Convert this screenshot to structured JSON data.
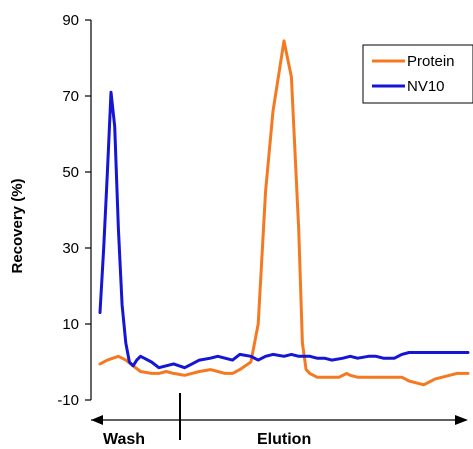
{
  "chart_data": {
    "type": "line",
    "ylabel": "Recovery (%)",
    "xlabel": "",
    "title": "",
    "ylim": [
      -10,
      90
    ],
    "yticks": [
      -10,
      10,
      30,
      50,
      70,
      90
    ],
    "xlim": [
      0,
      100
    ],
    "grid": false,
    "legend_position": "top-right",
    "regions": [
      "Wash",
      "Elution"
    ],
    "series": [
      {
        "name": "Protein",
        "color": "#f47920",
        "x": [
          0,
          2,
          5,
          7,
          9,
          11,
          14,
          16,
          18,
          20,
          23,
          25,
          27,
          30,
          32,
          34,
          36,
          38,
          41,
          43,
          45,
          47,
          50,
          52,
          54,
          55,
          56,
          57,
          58,
          59,
          60,
          61,
          62,
          63,
          64,
          65,
          66,
          67,
          68,
          70,
          73,
          75,
          77,
          80,
          82,
          84,
          86,
          88,
          91,
          93,
          95,
          97,
          99,
          100
        ],
        "y": [
          -0.5,
          0.5,
          1.5,
          0.5,
          -1,
          -2.5,
          -3,
          -3,
          -2.5,
          -3,
          -3.5,
          -3,
          -2.5,
          -2,
          -2.5,
          -3,
          -3,
          -2,
          0,
          10,
          45,
          66,
          84.5,
          75,
          35,
          5,
          -2,
          -3,
          -3.5,
          -4,
          -4,
          -4,
          -4,
          -4,
          -4,
          -4,
          -3.5,
          -3,
          -3.5,
          -4,
          -4,
          -4,
          -4,
          -4,
          -4,
          -5,
          -5.5,
          -6,
          -4.5,
          -4,
          -3.5,
          -3,
          -3,
          -3
        ]
      },
      {
        "name": "NV10",
        "color": "#1515d4",
        "x": [
          0,
          1,
          2,
          3,
          4,
          5,
          6,
          7,
          8,
          9,
          10,
          11,
          12,
          14,
          16,
          18,
          20,
          23,
          25,
          27,
          30,
          32,
          34,
          36,
          38,
          41,
          43,
          45,
          47,
          50,
          52,
          54,
          57,
          59,
          61,
          63,
          66,
          68,
          70,
          73,
          75,
          77,
          80,
          82,
          84,
          86,
          88,
          91,
          93,
          95,
          97,
          100
        ],
        "y": [
          13,
          30,
          50,
          71,
          62,
          35,
          15,
          5,
          0,
          -1,
          0.5,
          1.5,
          1,
          0,
          -1.5,
          -1,
          -0.5,
          -1.5,
          -0.5,
          0.5,
          1,
          1.5,
          1,
          0.5,
          2,
          1.5,
          0.5,
          1.5,
          2,
          1.5,
          2,
          1.5,
          1.5,
          1,
          1,
          0.5,
          1,
          1.5,
          1,
          1.5,
          1.5,
          1,
          1,
          2,
          2.5,
          2.5,
          2.5,
          2.5,
          2.5,
          2.5,
          2.5,
          2.5
        ]
      }
    ]
  }
}
